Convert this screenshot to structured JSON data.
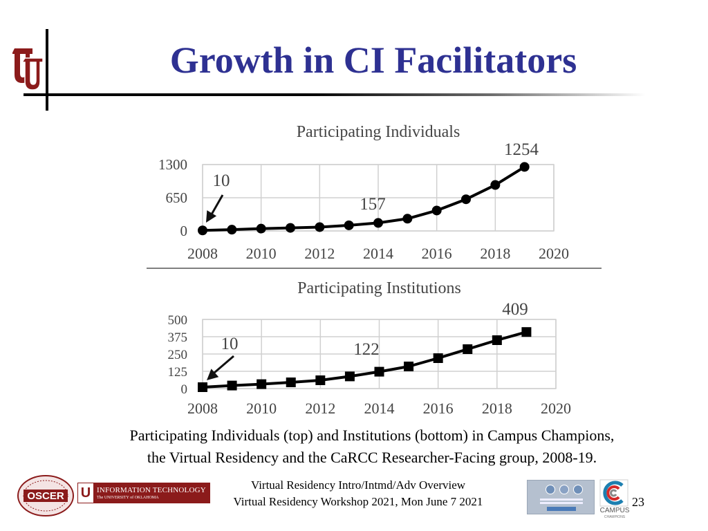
{
  "slide": {
    "title": "Growth in CI Facilitators",
    "caption_line1": "Participating Individuals (top) and Institutions (bottom) in Campus Champions,",
    "caption_line2": "the Virtual Residency and the CaRCC Researcher-Facing group, 2008-19.",
    "footer_line1": "Virtual Residency Intro/Intmd/Adv Overview",
    "footer_line2": "Virtual Residency Workshop 2021, Mon June 7 2021",
    "slide_number": "23"
  },
  "colors": {
    "title": "#2e3192",
    "logo_red": "#8b1b1b",
    "series": "#000000",
    "grid": "#d0d0d0"
  },
  "logos": {
    "oscer": "OSCER",
    "it_line1": "INFORMATION TECHNOLOGY",
    "it_line2": "The UNIVERSITY of OKLAHOMA",
    "campus_champions": "CAMPUS",
    "campus_champions_sub": "CHAMPIONS"
  },
  "chart_data": [
    {
      "type": "line",
      "title": "Participating Individuals",
      "marker": "circle",
      "x": [
        2008,
        2009,
        2010,
        2011,
        2012,
        2013,
        2014,
        2015,
        2016,
        2017,
        2018,
        2019
      ],
      "values": [
        10,
        25,
        45,
        60,
        75,
        110,
        157,
        240,
        400,
        620,
        900,
        1254
      ],
      "xlim": [
        2008,
        2020
      ],
      "ylim": [
        0,
        1300
      ],
      "xticks": [
        "2008",
        "2010",
        "2012",
        "2014",
        "2016",
        "2018",
        "2020"
      ],
      "yticks": [
        "0",
        "650",
        "1300"
      ],
      "annotations": [
        {
          "text": "10",
          "x": 2008,
          "y": 10,
          "arrow": true
        },
        {
          "text": "157",
          "x": 2014,
          "y": 157,
          "arrow": false
        },
        {
          "text": "1254",
          "x": 2019,
          "y": 1254,
          "arrow": false
        }
      ]
    },
    {
      "type": "line",
      "title": "Participating Institutions",
      "marker": "square",
      "x": [
        2008,
        2009,
        2010,
        2011,
        2012,
        2013,
        2014,
        2015,
        2016,
        2017,
        2018,
        2019
      ],
      "values": [
        10,
        22,
        32,
        45,
        60,
        88,
        122,
        160,
        220,
        285,
        350,
        409
      ],
      "xlim": [
        2008,
        2020
      ],
      "ylim": [
        0,
        500
      ],
      "xticks": [
        "2008",
        "2010",
        "2012",
        "2014",
        "2016",
        "2018",
        "2020"
      ],
      "yticks": [
        "0",
        "125",
        "250",
        "375",
        "500"
      ],
      "annotations": [
        {
          "text": "10",
          "x": 2008,
          "y": 10,
          "arrow": true
        },
        {
          "text": "122",
          "x": 2014,
          "y": 122,
          "arrow": false
        },
        {
          "text": "409",
          "x": 2019,
          "y": 409,
          "arrow": false
        }
      ]
    }
  ]
}
